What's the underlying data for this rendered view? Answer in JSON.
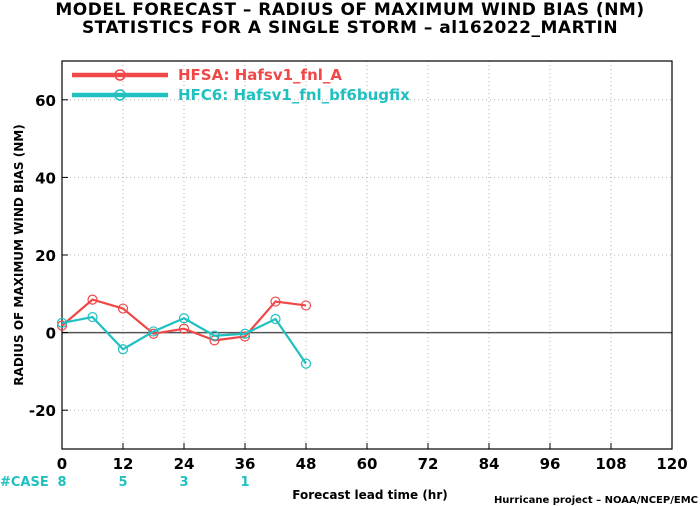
{
  "title_line1": "MODEL FORECAST – RADIUS OF MAXIMUM WIND BIAS (NM)",
  "title_line2": "STATISTICS FOR A SINGLE STORM – al162022_MARTIN",
  "credit": "Hurricane project – NOAA/NCEP/EMC",
  "case_label": "#CASE",
  "chart_data": {
    "type": "line",
    "xlabel": "Forecast lead time (hr)",
    "ylabel": "RADIUS OF MAXIMUM WIND BIAS (NM)",
    "xlim": [
      0,
      120
    ],
    "ylim": [
      -30,
      70
    ],
    "xticks": [
      0,
      12,
      24,
      36,
      48,
      60,
      72,
      84,
      96,
      108,
      120
    ],
    "yticks": [
      -20,
      0,
      20,
      40,
      60
    ],
    "grid": true,
    "legend_position": "top-left",
    "series": [
      {
        "name": "HFSA: Hafsv1_fnl_A",
        "color": "#f04848",
        "x": [
          0,
          6,
          12,
          18,
          24,
          30,
          36,
          42,
          48
        ],
        "y": [
          1.8,
          8.5,
          6.2,
          -0.3,
          1.0,
          -2.0,
          -1.0,
          8.0,
          7.0
        ]
      },
      {
        "name": "HFC6: Hafsv1_fnl_bf6bugfix",
        "color": "#20c0c0",
        "x": [
          0,
          6,
          12,
          18,
          24,
          30,
          36,
          42,
          48
        ],
        "y": [
          2.5,
          4.0,
          -4.3,
          0.3,
          3.7,
          -0.8,
          -0.3,
          3.5,
          -8.0
        ]
      }
    ],
    "cases": [
      {
        "x": 0,
        "label": "8"
      },
      {
        "x": 12,
        "label": "5"
      },
      {
        "x": 24,
        "label": "3"
      },
      {
        "x": 36,
        "label": "1"
      }
    ],
    "cases_color": "#20c0c0",
    "zero_line_color": "#555555",
    "grid_color": "#b0b0b0"
  }
}
